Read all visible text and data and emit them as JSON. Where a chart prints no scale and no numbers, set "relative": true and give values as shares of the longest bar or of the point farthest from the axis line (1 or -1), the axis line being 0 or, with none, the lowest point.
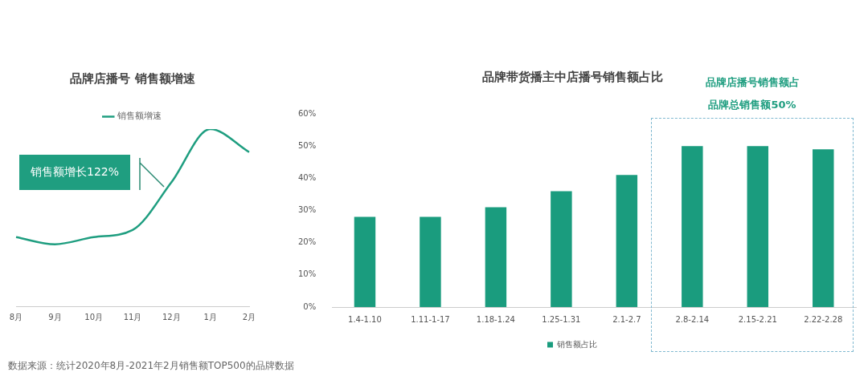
{
  "chart_data": [
    {
      "type": "line",
      "title": "品牌店播号 销售额增速",
      "categories": [
        "8月",
        "9月",
        "10月",
        "11月",
        "12月",
        "1月",
        "2月"
      ],
      "series": [
        {
          "name": "销售额增速",
          "color": "#1f9e80",
          "values": [
            0.39,
            0.35,
            0.39,
            0.43,
            0.7,
            1.0,
            0.87
          ]
        }
      ],
      "relative": true,
      "grid": false,
      "legend": "top",
      "marker": "none",
      "line_style": "solid",
      "annotations": [
        "销售额增长122%",
        "数据来源：统计2020年8月-2021年2月销售额TOP500的品牌数据"
      ]
    },
    {
      "type": "bar",
      "title": "品牌带货播主中店播号销售额占比",
      "categories": [
        "1.4-1.10",
        "1.11-1-17",
        "1.18-1.24",
        "1.25-1.31",
        "2.1-2.7",
        "2.8-2.14",
        "2.15-2.21",
        "2.22-2.28"
      ],
      "series": [
        {
          "name": "销售额占比",
          "color": "#1a9c7e",
          "values": [
            28,
            28,
            31,
            36,
            41,
            50,
            50,
            49
          ]
        }
      ],
      "ylim": [
        0,
        60
      ],
      "yticks": [
        {
          "value": 0,
          "label": "0%"
        },
        {
          "value": 10,
          "label": "10%"
        },
        {
          "value": 20,
          "label": "20%"
        },
        {
          "value": 30,
          "label": "30%"
        },
        {
          "value": 40,
          "label": "40%"
        },
        {
          "value": 50,
          "label": "50%"
        },
        {
          "value": 60,
          "label": "60%"
        }
      ],
      "grid": false,
      "legend": "bottom",
      "annotations": [
        "品牌店播号销售额占品牌总销售额50%"
      ]
    }
  ]
}
